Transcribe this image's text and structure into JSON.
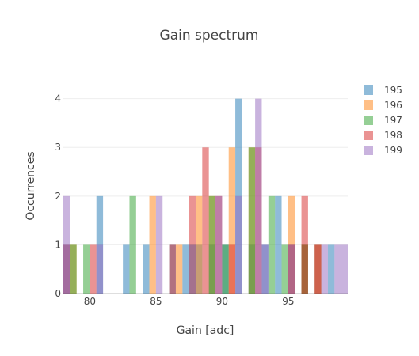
{
  "chart_data": {
    "type": "bar",
    "title": "Gain spectrum",
    "xlabel": "Gain [adc]",
    "ylabel": "Occurrences",
    "xlim": [
      78,
      99.5
    ],
    "ylim": [
      0,
      4.4
    ],
    "xticks": [
      80,
      85,
      90,
      95
    ],
    "yticks": [
      0,
      1,
      2,
      3,
      4
    ],
    "bin_width": 0.5,
    "grid": true,
    "barmode": "overlay",
    "opacity": 0.5,
    "legend_position": "top-right",
    "series": [
      {
        "name": "195",
        "color": "#1f77b4",
        "bins": [
          {
            "x": 78.25,
            "y": 1
          },
          {
            "x": 80.75,
            "y": 2
          },
          {
            "x": 82.75,
            "y": 1
          },
          {
            "x": 84.25,
            "y": 1
          },
          {
            "x": 86.25,
            "y": 1
          },
          {
            "x": 87.25,
            "y": 1
          },
          {
            "x": 88.25,
            "y": 1
          },
          {
            "x": 89.25,
            "y": 1
          },
          {
            "x": 90.25,
            "y": 1
          },
          {
            "x": 91.25,
            "y": 4
          },
          {
            "x": 92.25,
            "y": 1
          },
          {
            "x": 93.25,
            "y": 1
          },
          {
            "x": 94.25,
            "y": 2
          },
          {
            "x": 95.25,
            "y": 1
          },
          {
            "x": 96.25,
            "y": 1
          },
          {
            "x": 97.25,
            "y": 1
          },
          {
            "x": 98.25,
            "y": 1
          }
        ]
      },
      {
        "name": "196",
        "color": "#ff7f0e",
        "bins": [
          {
            "x": 78.75,
            "y": 1
          },
          {
            "x": 84.75,
            "y": 2
          },
          {
            "x": 86.75,
            "y": 1
          },
          {
            "x": 88.25,
            "y": 2
          },
          {
            "x": 89.25,
            "y": 2
          },
          {
            "x": 90.75,
            "y": 3
          },
          {
            "x": 92.25,
            "y": 3
          },
          {
            "x": 95.25,
            "y": 2
          },
          {
            "x": 96.25,
            "y": 1
          },
          {
            "x": 97.25,
            "y": 1
          }
        ]
      },
      {
        "name": "197",
        "color": "#2ca02c",
        "bins": [
          {
            "x": 78.75,
            "y": 1
          },
          {
            "x": 79.75,
            "y": 1
          },
          {
            "x": 83.25,
            "y": 2
          },
          {
            "x": 87.75,
            "y": 1
          },
          {
            "x": 89.25,
            "y": 2
          },
          {
            "x": 90.25,
            "y": 1
          },
          {
            "x": 92.25,
            "y": 3
          },
          {
            "x": 93.75,
            "y": 2
          },
          {
            "x": 94.75,
            "y": 1
          },
          {
            "x": 96.25,
            "y": 1
          }
        ]
      },
      {
        "name": "198",
        "color": "#d62728",
        "bins": [
          {
            "x": 78.25,
            "y": 1
          },
          {
            "x": 80.25,
            "y": 1
          },
          {
            "x": 86.25,
            "y": 1
          },
          {
            "x": 87.75,
            "y": 2
          },
          {
            "x": 88.75,
            "y": 3
          },
          {
            "x": 89.75,
            "y": 2
          },
          {
            "x": 90.75,
            "y": 1
          },
          {
            "x": 92.75,
            "y": 3
          },
          {
            "x": 95.25,
            "y": 1
          },
          {
            "x": 96.25,
            "y": 2
          },
          {
            "x": 97.25,
            "y": 1
          }
        ]
      },
      {
        "name": "199",
        "color": "#9467bd",
        "bins": [
          {
            "x": 78.25,
            "y": 2
          },
          {
            "x": 80.75,
            "y": 1
          },
          {
            "x": 85.25,
            "y": 2
          },
          {
            "x": 87.75,
            "y": 1
          },
          {
            "x": 89.75,
            "y": 2
          },
          {
            "x": 91.25,
            "y": 2
          },
          {
            "x": 92.75,
            "y": 4
          },
          {
            "x": 93.25,
            "y": 1
          },
          {
            "x": 95.25,
            "y": 1
          },
          {
            "x": 97.75,
            "y": 1
          },
          {
            "x": 98.75,
            "y": 1
          },
          {
            "x": 99.25,
            "y": 1
          }
        ]
      }
    ]
  }
}
